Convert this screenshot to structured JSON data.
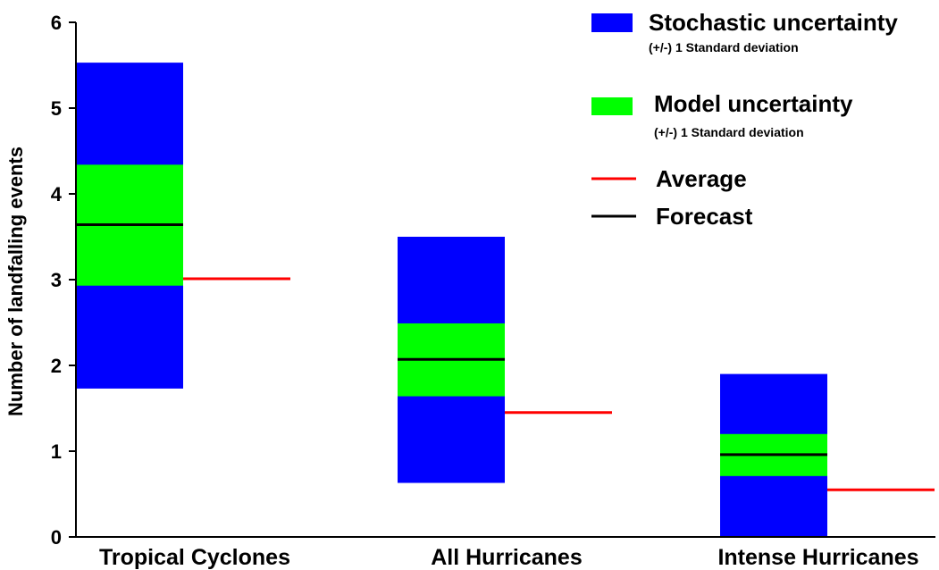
{
  "chart_data": {
    "type": "bar",
    "title": "",
    "xlabel": "",
    "ylabel": "Number of landfalling events",
    "ylim": [
      0,
      6
    ],
    "yticks": [
      "0",
      "1",
      "2",
      "3",
      "4",
      "5",
      "6"
    ],
    "grid": false,
    "legend_position": "top-right",
    "categories": [
      "Tropical Cyclones",
      "All Hurricanes",
      "Intense Hurricanes"
    ],
    "series": [
      {
        "name": "Stochastic uncertainty",
        "sub": "(+/-) 1 Standard deviation",
        "color": "#0000ff",
        "low": [
          1.73,
          0.63,
          0.0
        ],
        "high": [
          5.53,
          3.5,
          1.9
        ]
      },
      {
        "name": "Model uncertainty",
        "sub": "(+/-) 1 Standard deviation",
        "color": "#00ff00",
        "low": [
          2.93,
          1.64,
          0.71
        ],
        "high": [
          4.34,
          2.49,
          1.2
        ]
      },
      {
        "name": "Average",
        "sub": "",
        "color": "#ff0000",
        "values": [
          3.01,
          1.45,
          0.55
        ]
      },
      {
        "name": "Forecast",
        "sub": "",
        "color": "#000000",
        "values": [
          3.64,
          2.07,
          0.96
        ]
      }
    ]
  }
}
